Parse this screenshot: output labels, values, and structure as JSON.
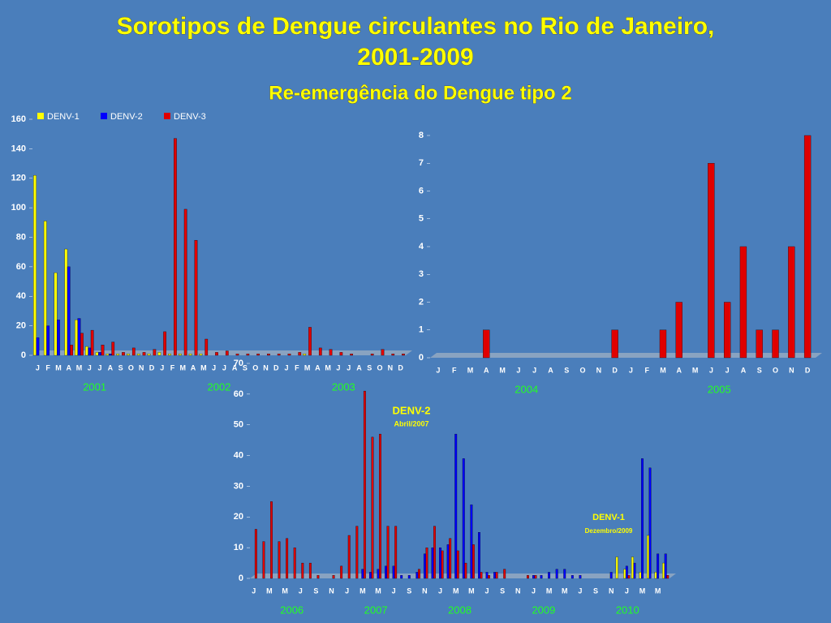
{
  "slide": {
    "title_lines": [
      "Sorotipos de Dengue circulantes no Rio de Janeiro,",
      "2001-2009"
    ],
    "subtitle": "Re-emergência do Dengue tipo 2"
  },
  "chart_data": [
    {
      "type": "bar",
      "legend": true,
      "ylim": [
        0,
        160
      ],
      "yticks": [
        0,
        20,
        40,
        60,
        80,
        100,
        120,
        140,
        160
      ],
      "categories": [
        "J",
        "F",
        "M",
        "A",
        "M",
        "J",
        "J",
        "A",
        "S",
        "O",
        "N",
        "D",
        "J",
        "F",
        "M",
        "A",
        "M",
        "J",
        "J",
        "A",
        "S",
        "O",
        "N",
        "D",
        "J",
        "F",
        "M",
        "A",
        "M",
        "J",
        "J",
        "A",
        "S",
        "O",
        "N",
        "D"
      ],
      "year_labels": [
        "2001",
        "2002",
        "2003"
      ],
      "series": [
        {
          "name": "DENV-1",
          "color": "#ffff00",
          "values": [
            122,
            91,
            56,
            72,
            24,
            6,
            2,
            1,
            1,
            1,
            1,
            1,
            2,
            1,
            1,
            1,
            1,
            0,
            0,
            0,
            0,
            0,
            0,
            0,
            0,
            0,
            1,
            0,
            0,
            0,
            0,
            0,
            0,
            0,
            0,
            0
          ]
        },
        {
          "name": "DENV-2",
          "color": "#0000ff",
          "values": [
            12,
            20,
            24,
            60,
            25,
            5,
            2,
            1,
            0,
            0,
            0,
            0,
            0,
            0,
            0,
            0,
            0,
            0,
            0,
            0,
            0,
            0,
            0,
            0,
            0,
            0,
            0,
            0,
            0,
            0,
            0,
            0,
            0,
            0,
            0,
            0
          ]
        },
        {
          "name": "DENV-3",
          "color": "#e00000",
          "values": [
            0,
            0,
            0,
            7,
            15,
            17,
            7,
            9,
            2,
            5,
            2,
            4,
            16,
            147,
            99,
            78,
            11,
            2,
            3,
            1,
            1,
            1,
            1,
            1,
            1,
            2,
            19,
            5,
            4,
            2,
            1,
            0,
            1,
            4,
            1,
            1
          ]
        }
      ]
    },
    {
      "type": "bar",
      "ylim": [
        0,
        8
      ],
      "yticks": [
        0,
        1,
        2,
        3,
        4,
        5,
        6,
        7,
        8
      ],
      "categories": [
        "J",
        "F",
        "M",
        "A",
        "M",
        "J",
        "J",
        "A",
        "S",
        "O",
        "N",
        "D",
        "J",
        "F",
        "M",
        "A",
        "M",
        "J",
        "J",
        "A",
        "S",
        "O",
        "N",
        "D"
      ],
      "year_labels": [
        "2004",
        "2005"
      ],
      "series": [
        {
          "color": "#e00000",
          "values": [
            0,
            0,
            0,
            1,
            0,
            0,
            0,
            0,
            0,
            0,
            0,
            1,
            0,
            0,
            1,
            2,
            0,
            7,
            2,
            4,
            1,
            1,
            4,
            8
          ]
        }
      ]
    },
    {
      "type": "bar",
      "ylim": [
        0,
        70
      ],
      "yticks": [
        0,
        10,
        20,
        30,
        40,
        50,
        60,
        70
      ],
      "categories": [
        "J",
        null,
        "M",
        null,
        "M",
        null,
        "J",
        null,
        "S",
        null,
        "N",
        null,
        "J",
        null,
        "M",
        null,
        "M",
        null,
        "J",
        null,
        "S",
        null,
        "N",
        null,
        "J",
        null,
        "M",
        null,
        "M",
        null,
        "J",
        null,
        "S",
        null,
        "N",
        null,
        "J",
        null,
        "M",
        null,
        "M",
        null,
        "J",
        null,
        "S",
        null,
        "N",
        null,
        "J",
        null,
        "M",
        null,
        "M",
        null
      ],
      "year_labels": [
        "2006",
        "2007",
        "2008",
        "2009",
        "2010"
      ],
      "annotations": [
        "DENV-2",
        "Abril/2007",
        "DENV-1",
        "Dezembro/2009"
      ],
      "series": [
        {
          "color": "#ffff00",
          "values": [
            0,
            0,
            0,
            0,
            0,
            0,
            0,
            0,
            0,
            0,
            0,
            0,
            0,
            0,
            0,
            0,
            0,
            0,
            0,
            0,
            0,
            0,
            0,
            0,
            0,
            0,
            0,
            0,
            0,
            0,
            0,
            0,
            0,
            0,
            0,
            0,
            0,
            0,
            0,
            0,
            0,
            0,
            0,
            0,
            0,
            0,
            0,
            7,
            3,
            7,
            2,
            14,
            2,
            5
          ]
        },
        {
          "color": "#0000ff",
          "values": [
            0,
            0,
            0,
            0,
            0,
            0,
            0,
            0,
            0,
            0,
            0,
            0,
            0,
            0,
            3,
            2,
            3,
            4,
            4,
            1,
            1,
            2,
            8,
            10,
            10,
            11,
            47,
            39,
            24,
            15,
            2,
            2,
            0,
            0,
            0,
            0,
            1,
            1,
            2,
            3,
            3,
            1,
            1,
            0,
            0,
            0,
            2,
            0,
            4,
            5,
            39,
            36,
            8,
            8
          ]
        },
        {
          "color": "#e00000",
          "values": [
            16,
            12,
            25,
            12,
            13,
            10,
            5,
            5,
            1,
            0,
            1,
            4,
            14,
            17,
            61,
            46,
            47,
            17,
            17,
            0,
            0,
            3,
            10,
            17,
            9,
            13,
            9,
            5,
            11,
            2,
            1,
            2,
            3,
            0,
            0,
            1,
            1,
            0,
            0,
            0,
            0,
            0,
            0,
            0,
            0,
            0,
            0,
            0,
            1,
            0,
            0,
            0,
            0,
            1
          ]
        }
      ]
    }
  ]
}
